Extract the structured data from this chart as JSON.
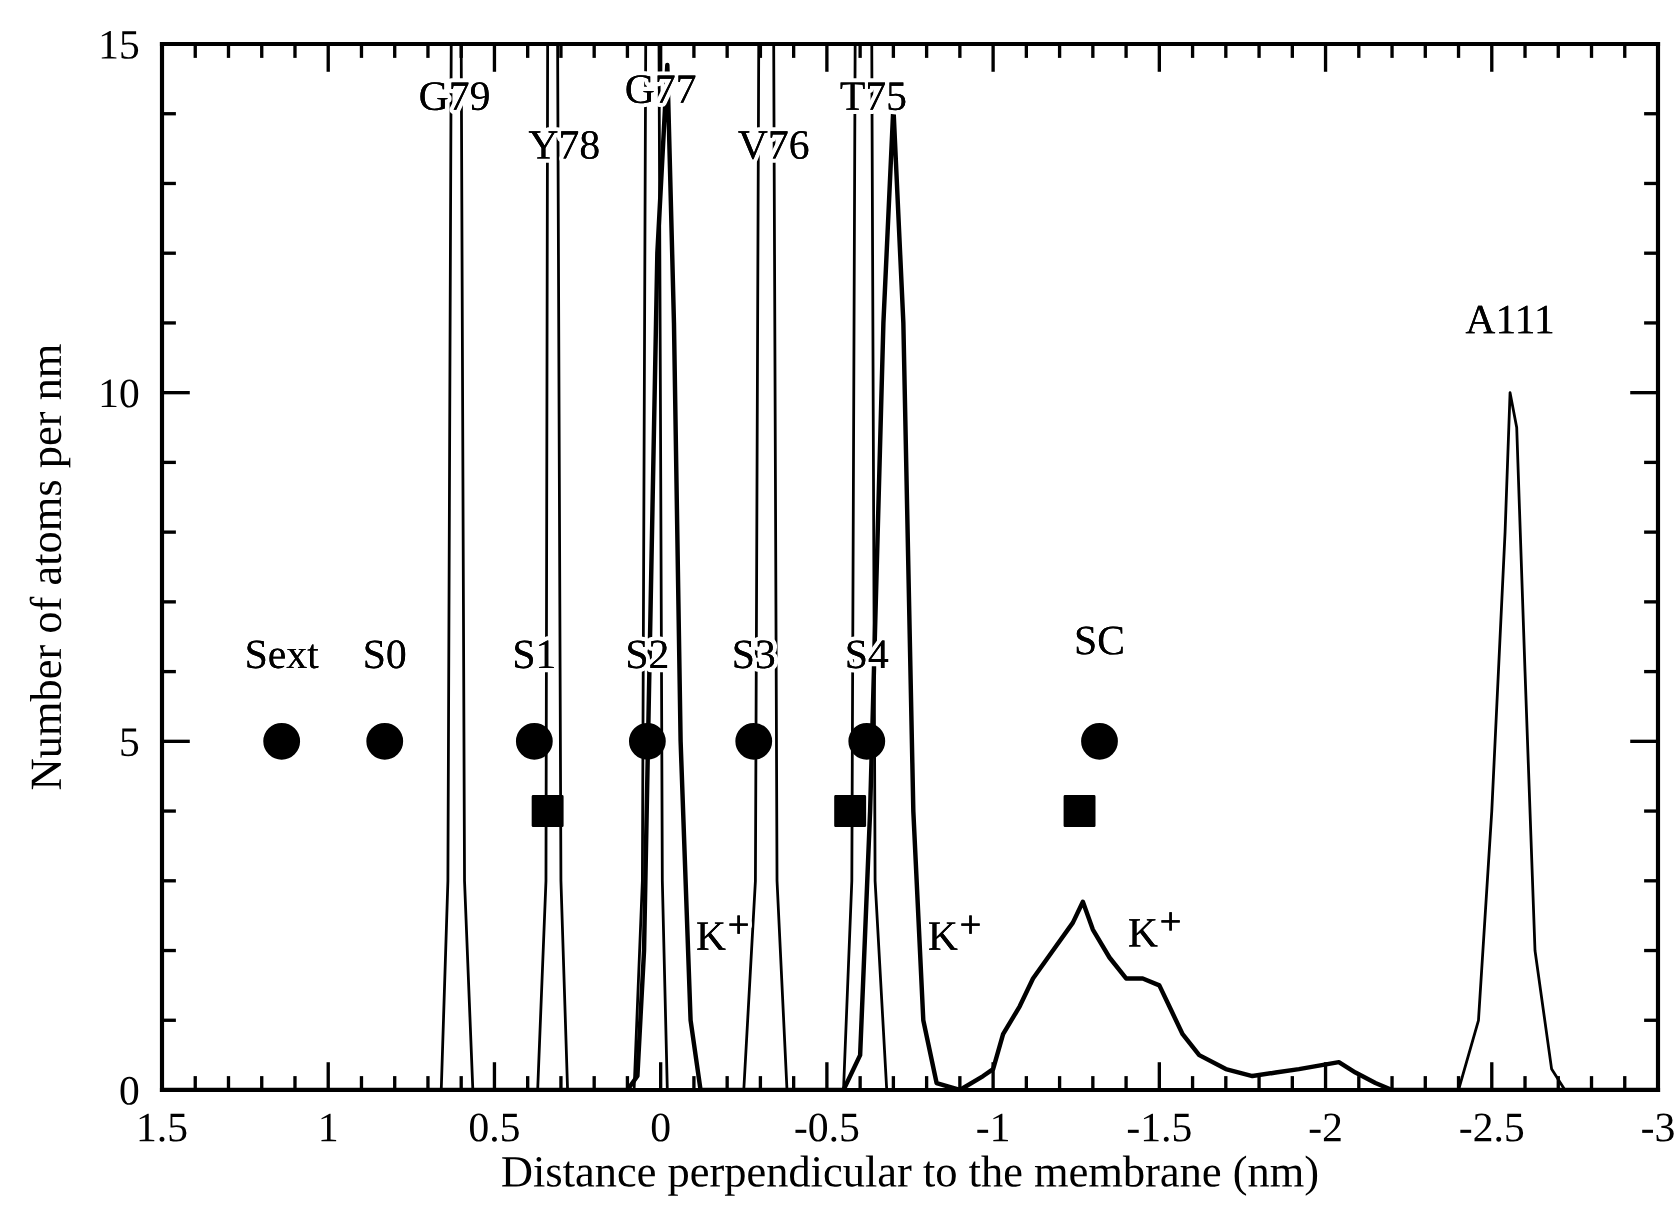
{
  "chart_data": {
    "type": "line",
    "xlabel": "Distance perpendicular to the membrane (nm)",
    "ylabel": "Number of atoms per nm",
    "xlim": [
      1.5,
      -3
    ],
    "ylim": [
      0,
      15
    ],
    "xticks": [
      1.5,
      {
        "value": 1.4,
        "label": null
      },
      {
        "value": 1.3,
        "label": null
      },
      {
        "value": 1.2,
        "label": null
      },
      {
        "value": 1.1,
        "label": null
      },
      1,
      {
        "value": 0.9,
        "label": null
      },
      {
        "value": 0.8,
        "label": null
      },
      {
        "value": 0.7,
        "label": null
      },
      {
        "value": 0.6,
        "label": null
      },
      0.5,
      {
        "value": 0.4,
        "label": null
      },
      {
        "value": 0.3,
        "label": null
      },
      {
        "value": 0.2,
        "label": null
      },
      {
        "value": 0.1,
        "label": null
      },
      0,
      {
        "value": -0.1,
        "label": null
      },
      {
        "value": -0.2,
        "label": null
      },
      {
        "value": -0.3,
        "label": null
      },
      {
        "value": -0.4,
        "label": null
      },
      -0.5,
      {
        "value": -0.6,
        "label": null
      },
      {
        "value": -0.7,
        "label": null
      },
      {
        "value": -0.8,
        "label": null
      },
      {
        "value": -0.9,
        "label": null
      },
      -1,
      {
        "value": -1.1,
        "label": null
      },
      {
        "value": -1.2,
        "label": null
      },
      {
        "value": -1.3,
        "label": null
      },
      {
        "value": -1.4,
        "label": null
      },
      -1.5,
      {
        "value": -1.6,
        "label": null
      },
      {
        "value": -1.7,
        "label": null
      },
      {
        "value": -1.8,
        "label": null
      },
      {
        "value": -1.9,
        "label": null
      },
      -2,
      {
        "value": -2.1,
        "label": null
      },
      {
        "value": -2.2,
        "label": null
      },
      {
        "value": -2.3,
        "label": null
      },
      {
        "value": -2.4,
        "label": null
      },
      -2.5,
      {
        "value": -2.6,
        "label": null
      },
      {
        "value": -2.7,
        "label": null
      },
      {
        "value": -2.8,
        "label": null
      },
      {
        "value": -2.9,
        "label": null
      },
      -3
    ],
    "yticks": [
      0,
      {
        "value": 1,
        "label": null
      },
      {
        "value": 2,
        "label": null
      },
      {
        "value": 3,
        "label": null
      },
      {
        "value": 4,
        "label": null
      },
      5,
      {
        "value": 6,
        "label": null
      },
      {
        "value": 7,
        "label": null
      },
      {
        "value": 8,
        "label": null
      },
      {
        "value": 9,
        "label": null
      },
      10,
      {
        "value": 11,
        "label": null
      },
      {
        "value": 12,
        "label": null
      },
      {
        "value": 13,
        "label": null
      },
      {
        "value": 14,
        "label": null
      },
      15
    ],
    "grid": false,
    "series": [
      {
        "color": "#000000",
        "line_style": "solid",
        "x": [
          1.5,
          0.66,
          0.64,
          0.63,
          0.6,
          0.59,
          0.565,
          0.37,
          0.345,
          0.34,
          0.31,
          0.3,
          0.28,
          0.08,
          0.055,
          0.045,
          0.005,
          -0.005,
          -0.02,
          -0.25,
          -0.285,
          -0.295,
          -0.34,
          -0.35,
          -0.38,
          -0.55,
          -0.575,
          -0.585,
          -0.635,
          -0.645,
          -0.68,
          -2.4,
          -2.46,
          -2.5,
          -2.54,
          -2.555,
          -2.575,
          -2.6,
          -2.63,
          -2.68,
          -2.72,
          -3
        ],
        "values": [
          0,
          0,
          3,
          15,
          15,
          3,
          0,
          0,
          3,
          15,
          15,
          3,
          0,
          0,
          3,
          15,
          15,
          3,
          0,
          0,
          3,
          15,
          15,
          3,
          0,
          0,
          3,
          15,
          15,
          3,
          0,
          0,
          1,
          4,
          8,
          10,
          9.5,
          6,
          2,
          0.3,
          0,
          0
        ]
      },
      {
        "color": "#000000",
        "line_style": "solid",
        "x": [
          1.5,
          0.1,
          0.07,
          0.05,
          0.03,
          0.01,
          -0.02,
          -0.04,
          -0.06,
          -0.09,
          -0.12,
          -0.55,
          -0.6,
          -0.63,
          -0.67,
          -0.7,
          -0.73,
          -0.76,
          -0.79,
          -0.83,
          -0.9,
          -0.97,
          -1.0,
          -1.03,
          -1.08,
          -1.12,
          -1.18,
          -1.24,
          -1.27,
          -1.3,
          -1.35,
          -1.4,
          -1.45,
          -1.5,
          -1.53,
          -1.57,
          -1.62,
          -1.7,
          -1.78,
          -1.85,
          -1.92,
          -1.98,
          -2.04,
          -2.09,
          -2.15,
          -2.2,
          -3
        ],
        "values": [
          0,
          0,
          0.2,
          2,
          7,
          12,
          14.7,
          11,
          5,
          1,
          0,
          0,
          0.5,
          4,
          11,
          14.1,
          11,
          4,
          1,
          0.1,
          0,
          0.2,
          0.3,
          0.8,
          1.2,
          1.6,
          2.0,
          2.4,
          2.7,
          2.3,
          1.9,
          1.6,
          1.6,
          1.5,
          1.2,
          0.8,
          0.5,
          0.3,
          0.2,
          0.25,
          0.3,
          0.35,
          0.4,
          0.25,
          0.1,
          0,
          0
        ]
      },
      {
        "type": "scatter",
        "color": "#000000",
        "marker": "circle",
        "x": [
          1.14,
          0.83,
          0.38,
          0.04,
          -0.28,
          -0.62,
          -1.32
        ],
        "values": [
          5,
          5,
          5,
          5,
          5,
          5,
          5
        ]
      },
      {
        "type": "scatter",
        "color": "#000000",
        "marker": "square",
        "x": [
          0.34,
          -0.57,
          -1.26
        ],
        "values": [
          4,
          4,
          4
        ]
      }
    ],
    "annotations": [
      {
        "text": "G79",
        "x": 0.62,
        "y": 14.2
      },
      {
        "text": "Y78",
        "x": 0.29,
        "y": 13.5
      },
      {
        "text": "G77",
        "x": 0.0,
        "y": 14.3
      },
      {
        "text": "V76",
        "x": -0.34,
        "y": 13.5
      },
      {
        "text": "T75",
        "x": -0.64,
        "y": 14.2
      },
      {
        "text": "A111",
        "x": -2.555,
        "y": 10
      },
      {
        "text": "Sext",
        "x": 1.14,
        "y": 5
      },
      {
        "text": "S0",
        "x": 0.83,
        "y": 5
      },
      {
        "text": "S1",
        "x": 0.38,
        "y": 5
      },
      {
        "text": "S2",
        "x": 0.04,
        "y": 5
      },
      {
        "text": "S3",
        "x": -0.28,
        "y": 5
      },
      {
        "text": "S4",
        "x": -0.62,
        "y": 5
      },
      {
        "text": "SC",
        "x": -1.32,
        "y": 5
      },
      {
        "text": "K$^{+}$",
        "x": -0.081,
        "y": 2.15
      },
      {
        "text": "K$^{+}$",
        "x": -0.7785,
        "y": 2.15
      },
      {
        "text": "K$^{+}$",
        "x": -1.49,
        "y": 1.52
      }
    ]
  }
}
